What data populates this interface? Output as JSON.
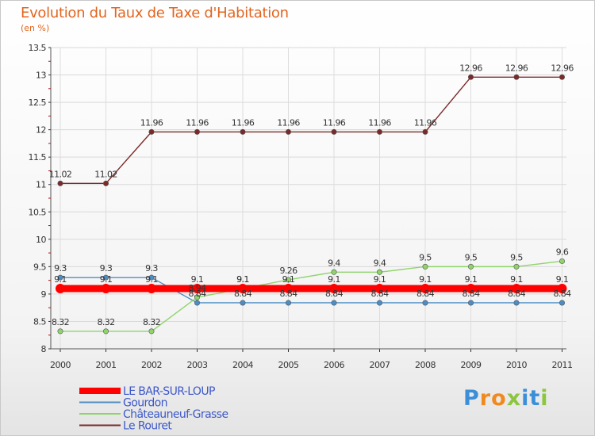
{
  "chart_data": {
    "type": "line",
    "title": "Evolution du Taux de Taxe d'Habitation",
    "subtitle": "(en %)",
    "x": [
      "2000",
      "2001",
      "2002",
      "2003",
      "2004",
      "2005",
      "2006",
      "2007",
      "2008",
      "2009",
      "2010",
      "2011"
    ],
    "ylim": [
      8,
      13.5
    ],
    "yticks": [
      "8",
      "8.5",
      "9",
      "9.5",
      "10",
      "10.5",
      "11",
      "11.5",
      "12",
      "12.5",
      "13",
      "13.5"
    ],
    "grid": "horizontal",
    "legend_position": "bottom-left",
    "series": [
      {
        "name": "LE BAR-SUR-LOUP",
        "color": "#ff0000",
        "values": [
          9.1,
          9.1,
          9.1,
          9.1,
          9.1,
          9.1,
          9.1,
          9.1,
          9.1,
          9.1,
          9.1,
          9.1
        ],
        "labels": [
          "9.1",
          "9.1",
          "9.1",
          "9.1",
          "9.1",
          "9.1",
          "9.1",
          "9.1",
          "9.1",
          "9.1",
          "9.1",
          "9.1"
        ]
      },
      {
        "name": "Gourdon",
        "color": "#4b8ec6",
        "values": [
          9.3,
          9.3,
          9.3,
          8.84,
          8.84,
          8.84,
          8.84,
          8.84,
          8.84,
          8.84,
          8.84,
          8.84
        ],
        "labels": [
          "9.3",
          "9.3",
          "9.3",
          "8.84",
          "8.84",
          "8.84",
          "8.84",
          "8.84",
          "8.84",
          "8.84",
          "8.84",
          "8.84"
        ]
      },
      {
        "name": "Châteauneuf-Grasse",
        "color": "#8fd46b",
        "values": [
          8.32,
          8.32,
          8.32,
          8.94,
          9.1,
          9.26,
          9.4,
          9.4,
          9.5,
          9.5,
          9.5,
          9.6
        ],
        "labels": [
          "8.32",
          "8.32",
          "8.32",
          "8.94",
          "9.1",
          "9.26",
          "9.4",
          "9.4",
          "9.5",
          "9.5",
          "9.5",
          "9.6"
        ]
      },
      {
        "name": "Le Rouret",
        "color": "#7a2a2a",
        "values": [
          11.02,
          11.02,
          11.96,
          11.96,
          11.96,
          11.96,
          11.96,
          11.96,
          11.96,
          12.96,
          12.96,
          12.96
        ],
        "labels": [
          "11.02",
          "11.02",
          "11.96",
          "11.96",
          "11.96",
          "11.96",
          "11.96",
          "11.96",
          "11.96",
          "12.96",
          "12.96",
          "12.96"
        ]
      }
    ]
  },
  "logo": {
    "letters": [
      "P",
      "r",
      "o",
      "x",
      "i",
      "t",
      "i"
    ],
    "colors": [
      "#3a8fd8",
      "#f08a1c",
      "#f08a1c",
      "#8cc63f",
      "#3a8fd8",
      "#3a8fd8",
      "#8cc63f"
    ]
  }
}
